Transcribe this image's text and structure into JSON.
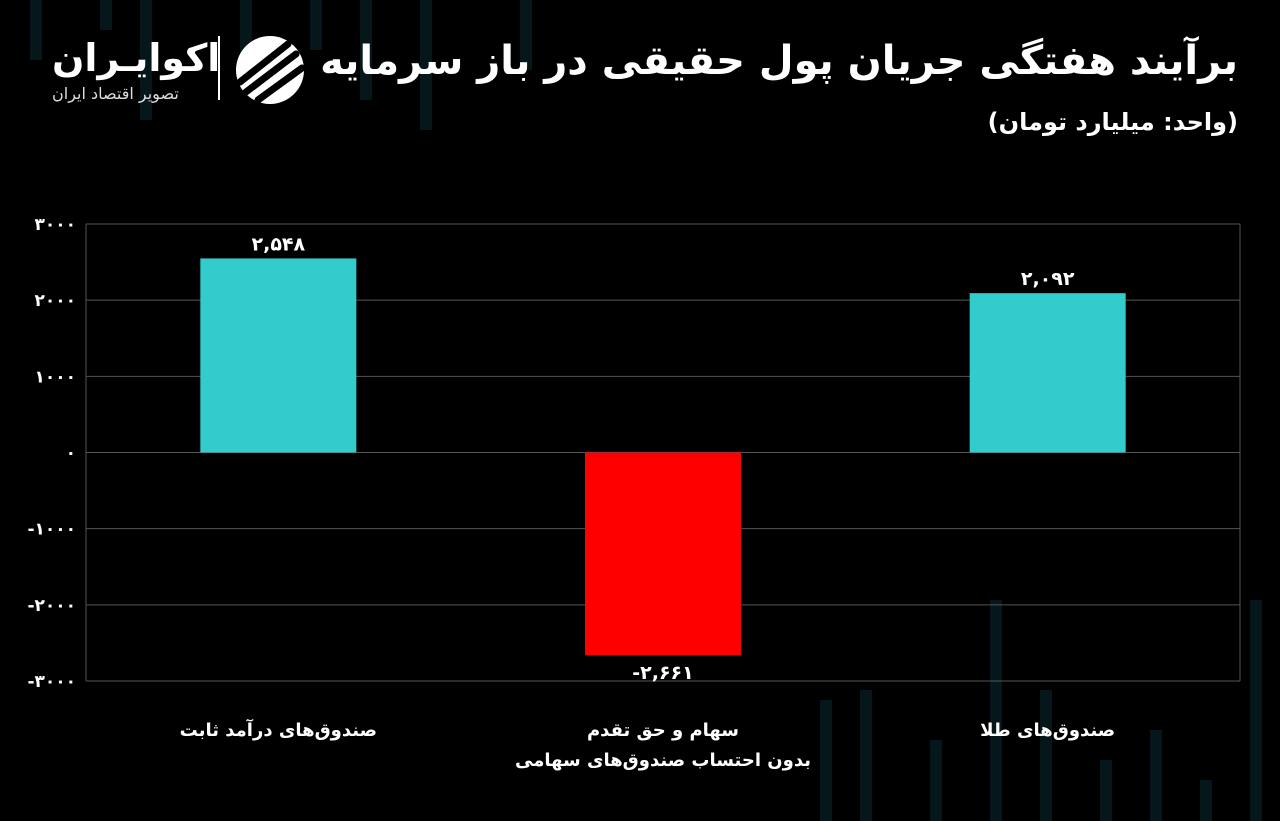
{
  "header": {
    "title": "برآیند هفتگی جریان پول حقیقی در باز سرمایه",
    "unit": "(واحد: میلیارد تومان)"
  },
  "logo": {
    "name": "اکوایـران",
    "tagline": "تصویر اقتصاد ایران",
    "icon": "ecoiran-logo-icon"
  },
  "chart_data": {
    "type": "bar",
    "categories": [
      [
        "صندوق‌های درآمد ثابت"
      ],
      [
        "سهام و حق تقدم",
        "بدون احتساب صندوق‌های سهامی"
      ],
      [
        "صندوق‌های طلا"
      ]
    ],
    "values": [
      2548,
      -2661,
      2092
    ],
    "value_labels": [
      "۲,۵۴۸",
      "-۲,۶۶۱",
      "۲,۰۹۲"
    ],
    "bar_colors": [
      "#33CCCC",
      "#FF0000",
      "#33CCCC"
    ],
    "ylim": [
      -3000,
      3000
    ],
    "yticks": [
      3000,
      2000,
      1000,
      0,
      -1000,
      -2000,
      -3000
    ],
    "ytick_labels": [
      "۳۰۰۰",
      "۲۰۰۰",
      "۱۰۰۰",
      "۰",
      "-۱۰۰۰",
      "-۲۰۰۰",
      "-۳۰۰۰"
    ],
    "grid": true,
    "legend": "none"
  }
}
